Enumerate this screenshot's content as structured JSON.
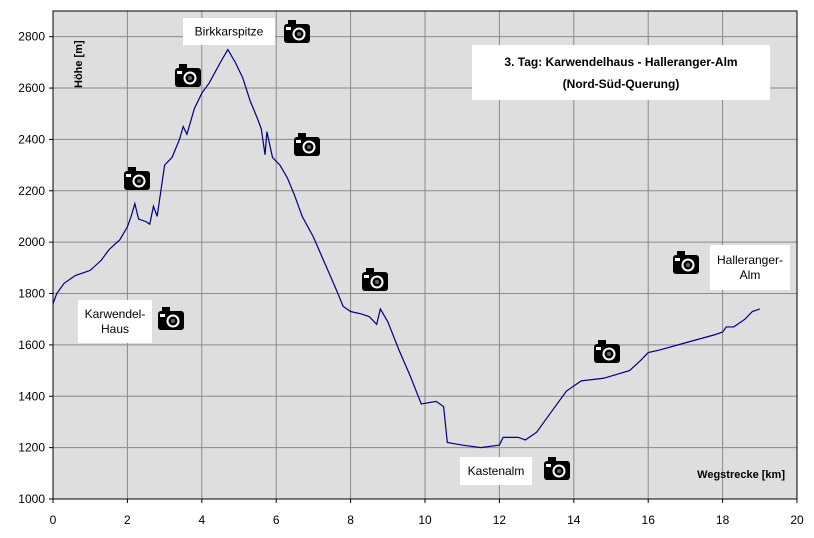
{
  "chart_data": {
    "type": "line",
    "title": "3. Tag: Karwendelhaus - Halleranger-Alm",
    "subtitle": "(Nord-Süd-Querung)",
    "x_label": "Wegstrecke [km]",
    "y_label": "Höhe [m]",
    "annotations": [
      {
        "lines": [
          "Birkkarspitze"
        ]
      },
      {
        "lines": [
          "Karwendel-",
          "Haus"
        ]
      },
      {
        "lines": [
          "Kastenalm"
        ]
      },
      {
        "lines": [
          "Halleranger-",
          "Alm"
        ]
      }
    ],
    "xlim": [
      0,
      20
    ],
    "xticks": [
      0,
      2,
      4,
      6,
      8,
      10,
      12,
      14,
      16,
      18,
      20
    ],
    "ylim": [
      1000,
      2900
    ],
    "yticks": [
      1000,
      1200,
      1400,
      1600,
      1800,
      2000,
      2200,
      2400,
      2600,
      2800
    ],
    "grid": true,
    "series": [
      {
        "color": "#000080",
        "x": [
          0,
          0.1,
          0.3,
          0.6,
          1.0,
          1.3,
          1.5,
          1.8,
          2.0,
          2.1,
          2.2,
          2.3,
          2.5,
          2.6,
          2.7,
          2.8,
          2.9,
          3.0,
          3.2,
          3.4,
          3.5,
          3.6,
          3.8,
          4.0,
          4.2,
          4.5,
          4.7,
          4.9,
          5.1,
          5.3,
          5.5,
          5.6,
          5.7,
          5.75,
          5.9,
          6.1,
          6.3,
          6.5,
          6.7,
          7.0,
          7.3,
          7.6,
          7.8,
          8.0,
          8.3,
          8.5,
          8.7,
          8.8,
          9.0,
          9.3,
          9.6,
          9.9,
          10.3,
          10.5,
          10.6,
          11.0,
          11.5,
          12.0,
          12.1,
          12.5,
          12.7,
          13.0,
          13.3,
          13.5,
          13.8,
          14.2,
          14.8,
          15.5,
          15.8,
          16.0,
          16.3,
          16.8,
          17.3,
          17.8,
          18.0,
          18.1,
          18.3,
          18.6,
          18.8,
          19.0
        ],
        "values": [
          1760,
          1800,
          1840,
          1870,
          1890,
          1930,
          1970,
          2010,
          2060,
          2100,
          2150,
          2090,
          2080,
          2070,
          2140,
          2100,
          2200,
          2300,
          2330,
          2400,
          2450,
          2420,
          2520,
          2580,
          2620,
          2700,
          2750,
          2700,
          2640,
          2550,
          2480,
          2440,
          2340,
          2430,
          2330,
          2300,
          2250,
          2180,
          2100,
          2020,
          1920,
          1820,
          1750,
          1730,
          1720,
          1710,
          1680,
          1740,
          1690,
          1580,
          1480,
          1370,
          1380,
          1360,
          1220,
          1210,
          1200,
          1210,
          1240,
          1240,
          1230,
          1260,
          1320,
          1360,
          1420,
          1460,
          1470,
          1500,
          1540,
          1570,
          1580,
          1600,
          1620,
          1640,
          1650,
          1670,
          1670,
          1700,
          1730,
          1740
        ]
      }
    ]
  }
}
